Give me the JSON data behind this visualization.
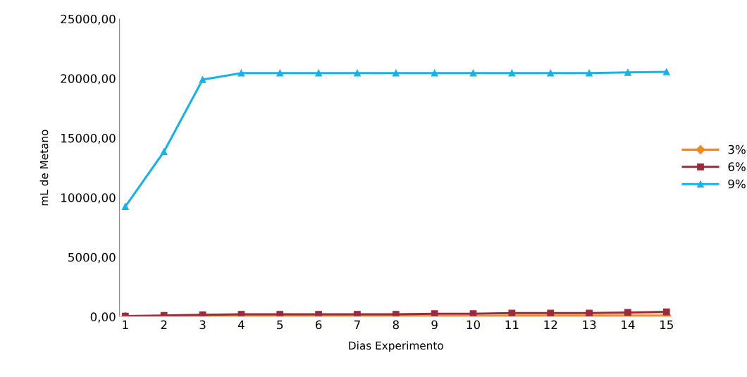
{
  "chart_data": {
    "type": "line",
    "xlabel": "Dias Experimento",
    "ylabel": "mL de Metano",
    "x": [
      1,
      2,
      3,
      4,
      5,
      6,
      7,
      8,
      9,
      10,
      11,
      12,
      13,
      14,
      15
    ],
    "series": [
      {
        "name": "3%",
        "color": "#f28a1c",
        "marker": "diamond",
        "values": [
          0,
          0,
          0,
          50,
          50,
          50,
          50,
          50,
          50,
          50,
          100,
          100,
          100,
          100,
          100
        ]
      },
      {
        "name": "6%",
        "color": "#9b2b3a",
        "marker": "square",
        "values": [
          50,
          100,
          150,
          200,
          200,
          200,
          200,
          200,
          250,
          250,
          300,
          300,
          300,
          350,
          400
        ]
      },
      {
        "name": "9%",
        "color": "#1ab0e8",
        "marker": "triangle",
        "values": [
          9250,
          13850,
          19900,
          20450,
          20450,
          20450,
          20450,
          20450,
          20450,
          20450,
          20450,
          20450,
          20450,
          20500,
          20550
        ]
      }
    ],
    "xlim": [
      0.85,
      15.15
    ],
    "xticks": [
      1,
      2,
      3,
      4,
      5,
      6,
      7,
      8,
      9,
      10,
      11,
      12,
      13,
      14,
      15
    ],
    "ylim": [
      0,
      25000
    ],
    "yticks": [
      {
        "value": 0,
        "label": "0,00"
      },
      {
        "value": 5000,
        "label": "5000,00"
      },
      {
        "value": 10000,
        "label": "10000,00"
      },
      {
        "value": 15000,
        "label": "15000,00"
      },
      {
        "value": 20000,
        "label": "20000,00"
      },
      {
        "value": 25000,
        "label": "25000,00"
      }
    ],
    "grid": false,
    "legend": "right",
    "line_style": "solid"
  }
}
